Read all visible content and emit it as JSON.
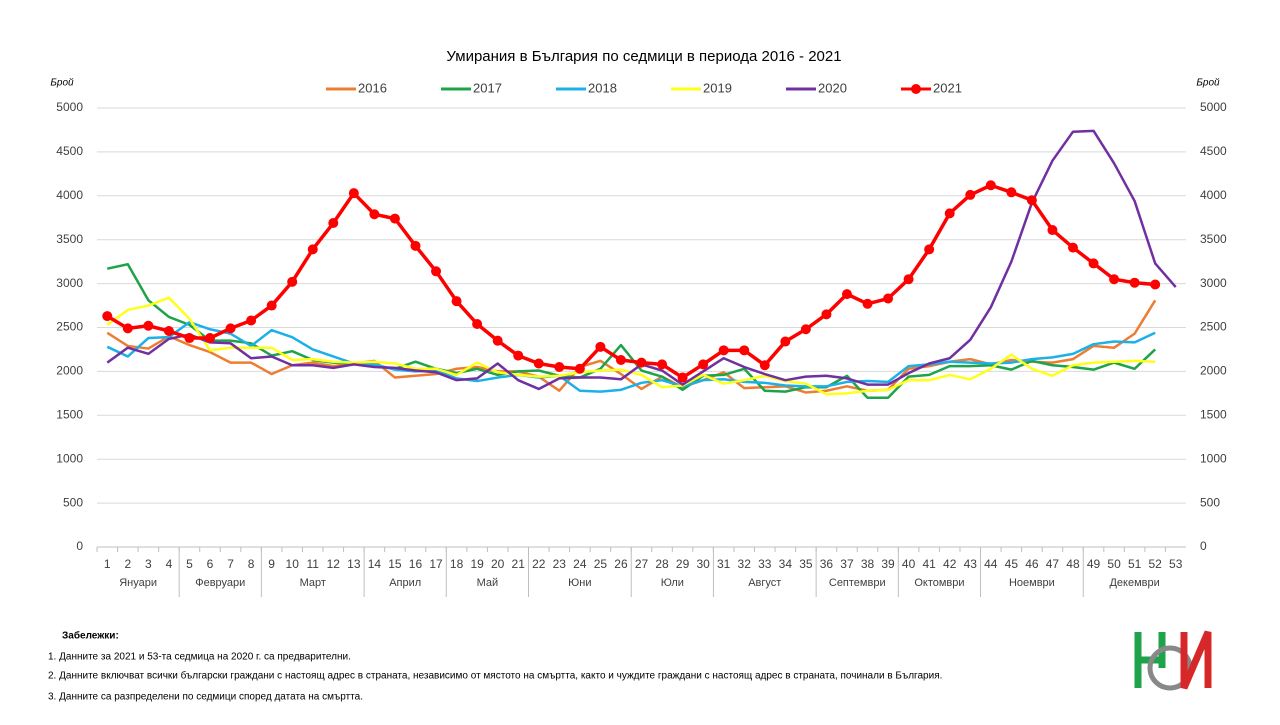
{
  "chart_data": {
    "type": "line",
    "title": "Умирания в България по седмици в периода 2016 - 2021",
    "y_label": "Брой",
    "y2_label": "Брой",
    "categories": [
      1,
      2,
      3,
      4,
      5,
      6,
      7,
      8,
      9,
      10,
      11,
      12,
      13,
      14,
      15,
      16,
      17,
      18,
      19,
      20,
      21,
      22,
      23,
      24,
      25,
      26,
      27,
      28,
      29,
      30,
      31,
      32,
      33,
      34,
      35,
      36,
      37,
      38,
      39,
      40,
      41,
      42,
      43,
      44,
      45,
      46,
      47,
      48,
      49,
      50,
      51,
      52,
      53
    ],
    "months": [
      "Януари",
      "Февруари",
      "Март",
      "Април",
      "Май",
      "Юни",
      "Юли",
      "Август",
      "Септември",
      "Октомври",
      "Ноември",
      "Декември"
    ],
    "ylim": [
      0,
      5000
    ],
    "yticks": [
      0,
      500,
      1000,
      1500,
      2000,
      2500,
      3000,
      3500,
      4000,
      4500,
      5000
    ],
    "y2lim": [
      0,
      5000
    ],
    "y2ticks": [
      0,
      500,
      1000,
      1500,
      2000,
      2500,
      3000,
      3500,
      4000,
      4500,
      5000
    ],
    "grid": true,
    "legend": "top",
    "series": [
      {
        "name": "2016",
        "color": "#ed7d31",
        "values": [
          2440,
          2290,
          2260,
          2400,
          2300,
          2220,
          2100,
          2100,
          1970,
          2070,
          2100,
          2060,
          2090,
          2120,
          1930,
          1950,
          1970,
          2030,
          2050,
          2000,
          2000,
          1940,
          1780,
          2050,
          2120,
          1970,
          1800,
          1940,
          1820,
          1900,
          1990,
          1810,
          1820,
          1830,
          1760,
          1780,
          1830,
          1780,
          1790,
          2030,
          2060,
          2110,
          2140,
          2080,
          2130,
          2110,
          2100,
          2140,
          2290,
          2270,
          2430,
          2810,
          null
        ]
      },
      {
        "name": "2017",
        "color": "#1ea34a",
        "values": [
          3170,
          3220,
          2810,
          2620,
          2530,
          2350,
          2350,
          2320,
          2180,
          2230,
          2130,
          2100,
          2090,
          2060,
          2030,
          2110,
          2030,
          1980,
          2030,
          1960,
          2000,
          2010,
          1950,
          1930,
          2030,
          2300,
          2010,
          1940,
          1790,
          1950,
          1960,
          2030,
          1780,
          1770,
          1820,
          1820,
          1950,
          1700,
          1700,
          1940,
          1960,
          2060,
          2060,
          2070,
          2020,
          2120,
          2070,
          2050,
          2020,
          2100,
          2030,
          2250,
          null
        ]
      },
      {
        "name": "2018",
        "color": "#1cb0e8",
        "values": [
          2280,
          2170,
          2380,
          2390,
          2560,
          2480,
          2430,
          2290,
          2470,
          2390,
          2250,
          2170,
          2090,
          2080,
          2020,
          2000,
          2010,
          1920,
          1890,
          1930,
          1960,
          1930,
          1950,
          1780,
          1770,
          1790,
          1870,
          1900,
          1830,
          1900,
          1910,
          1880,
          1870,
          1840,
          1830,
          1830,
          1880,
          1890,
          1880,
          2060,
          2080,
          2110,
          2100,
          2090,
          2100,
          2140,
          2160,
          2200,
          2310,
          2340,
          2330,
          2440,
          null
        ]
      },
      {
        "name": "2019",
        "color": "#ffff1a",
        "values": [
          2530,
          2700,
          2750,
          2840,
          2600,
          2240,
          2270,
          2270,
          2270,
          2130,
          2140,
          2110,
          2100,
          2110,
          2090,
          2030,
          2030,
          1960,
          2100,
          1990,
          1960,
          1940,
          1950,
          1990,
          2010,
          2020,
          1960,
          1820,
          1840,
          1960,
          1860,
          1900,
          1950,
          1890,
          1860,
          1740,
          1750,
          1780,
          1790,
          1900,
          1900,
          1960,
          1910,
          2030,
          2190,
          2030,
          1950,
          2070,
          2100,
          2110,
          2120,
          2110,
          null
        ]
      },
      {
        "name": "2020",
        "color": "#7030a0",
        "values": [
          2100,
          2270,
          2200,
          2370,
          2420,
          2330,
          2320,
          2150,
          2170,
          2070,
          2070,
          2040,
          2080,
          2050,
          2040,
          2010,
          1990,
          1900,
          1920,
          2090,
          1900,
          1800,
          1920,
          1930,
          1930,
          1910,
          2080,
          2010,
          1850,
          2000,
          2150,
          2050,
          1970,
          1900,
          1940,
          1950,
          1920,
          1850,
          1850,
          1980,
          2090,
          2150,
          2360,
          2730,
          3250,
          3920,
          4400,
          4730,
          4740,
          4370,
          3940,
          3230,
          2960
        ]
      },
      {
        "name": "2021",
        "color": "#ff0000",
        "marker": "circle",
        "values": [
          2630,
          2490,
          2520,
          2460,
          2380,
          2380,
          2490,
          2580,
          2750,
          3020,
          3390,
          3690,
          4030,
          3790,
          3740,
          3430,
          3140,
          2800,
          2540,
          2350,
          2180,
          2090,
          2050,
          2030,
          2280,
          2130,
          2100,
          2080,
          1930,
          2080,
          2240,
          2240,
          2070,
          2340,
          2480,
          2650,
          2880,
          2770,
          2830,
          3050,
          3390,
          3800,
          4010,
          4120,
          4040,
          3950,
          3610,
          3410,
          3230,
          3050,
          3010,
          2990,
          null
        ]
      }
    ]
  },
  "notes": {
    "title": "Забележки:",
    "items": [
      "1. Данните за 2021 и 53-та седмица на 2020 г. са предварителни.",
      "2. Данните включват всички български граждани с настоящ адрес в страната, независимо от мястото на смъртта, както и чуждите граждани с настоящ адрес в страната, починали в България.",
      "3. Данните са разпределени по седмици според датата на смъртта."
    ]
  }
}
